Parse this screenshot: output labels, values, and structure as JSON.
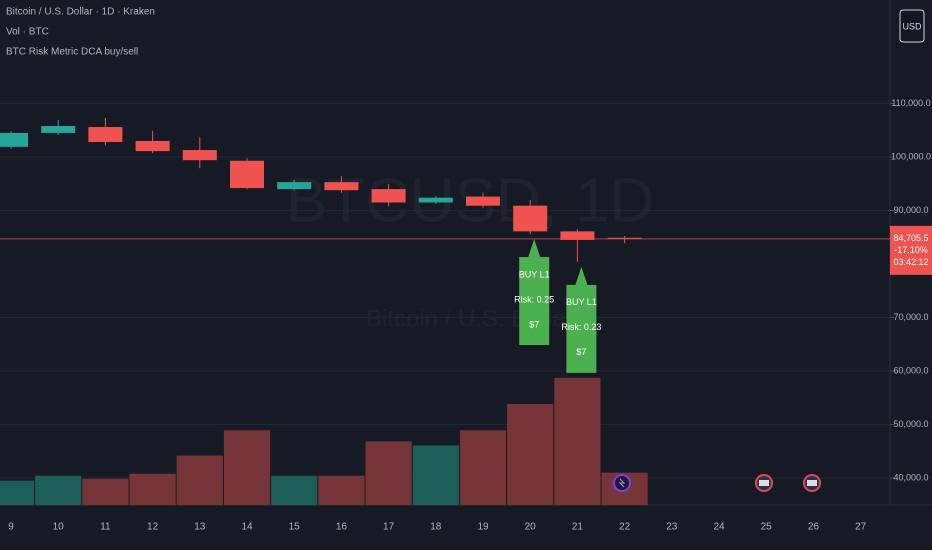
{
  "chart_data": {
    "type": "candlestick",
    "title": "Bitcoin / U.S. Dollar · 1D · Kraken",
    "indicators": [
      "Vol · BTC",
      "BTC Risk Metric DCA buy/sell"
    ],
    "currency": "USD",
    "watermark": [
      "BTCUSD, 1D",
      "Bitcoin / U.S. Dollar"
    ],
    "categories": [
      "9",
      "10",
      "11",
      "12",
      "13",
      "14",
      "15",
      "16",
      "17",
      "18",
      "19",
      "20",
      "21",
      "22",
      "23",
      "24",
      "25",
      "26",
      "27"
    ],
    "open": [
      101900,
      104500,
      105600,
      103000,
      101300,
      99300,
      94000,
      95300,
      94000,
      91500,
      92600,
      90900,
      86100,
      84900,
      null,
      null,
      null,
      null,
      null
    ],
    "high": [
      104800,
      106900,
      107300,
      104900,
      103700,
      99800,
      95700,
      96400,
      95000,
      92700,
      93300,
      92000,
      86500,
      85200,
      null,
      null,
      null,
      null,
      null
    ],
    "low": [
      101500,
      104100,
      102200,
      100700,
      97900,
      94000,
      93800,
      93300,
      90800,
      91200,
      90500,
      85600,
      80400,
      83900,
      null,
      null,
      null,
      null,
      null
    ],
    "close": [
      104500,
      105800,
      102800,
      101100,
      99400,
      94200,
      95300,
      93800,
      91500,
      92400,
      90900,
      86100,
      84500,
      84705.5,
      null,
      null,
      null,
      null,
      null
    ],
    "volume": [
      24,
      29,
      26,
      31,
      49,
      74,
      29,
      29,
      63,
      59,
      74,
      100,
      126,
      32,
      null,
      null,
      null,
      null,
      null
    ],
    "volume_ylim": [
      0,
      500
    ],
    "up_color": "#26a69a",
    "down_color": "#ef5350",
    "volume_up_color": "#1e5e5a",
    "volume_down_color": "#763538",
    "ylim": [
      34950,
      129350
    ],
    "yticks": [
      {
        "value": 110000,
        "label": "110,000.0"
      },
      {
        "value": 100000,
        "label": "100,000.0"
      },
      {
        "value": 90000,
        "label": "90,000.0"
      },
      {
        "value": 70000,
        "label": "70,000.0"
      },
      {
        "value": 60000,
        "label": "60,000.0"
      },
      {
        "value": 50000,
        "label": "50,000.0"
      },
      {
        "value": 40000,
        "label": "40,000.0"
      }
    ],
    "grid": true,
    "last_price": {
      "value": 84705.5,
      "label": "84,705.5",
      "change": "-17.10%",
      "countdown": "03:42:12"
    },
    "signals": [
      {
        "date": "20",
        "lines": [
          "BUY L1",
          "Risk: 0.25",
          "$7"
        ]
      },
      {
        "date": "21",
        "lines": [
          "BUY L1",
          "Risk: 0.23",
          "$7"
        ]
      }
    ],
    "signal_color": "#4caf50"
  }
}
